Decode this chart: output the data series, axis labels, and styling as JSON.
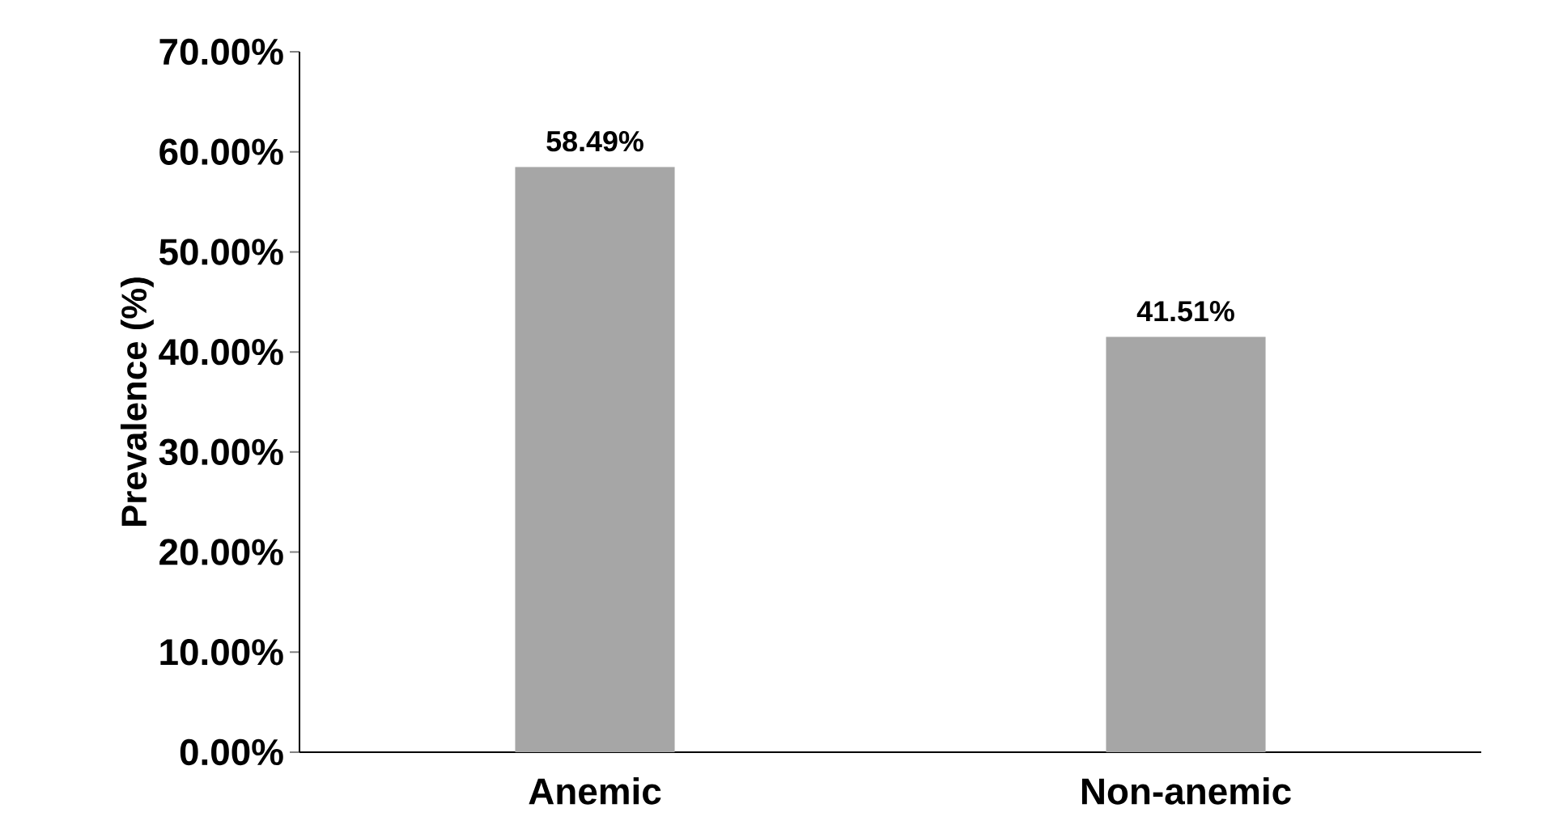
{
  "chart_data": {
    "type": "bar",
    "ylabel": "Prevalence (%)",
    "categories": [
      "Anemic",
      "Non-anemic"
    ],
    "values": [
      58.49,
      41.51
    ],
    "color": "#a6a6a6",
    "value_labels": [
      "58.49%",
      "41.51%"
    ],
    "ylim": [
      0,
      70
    ],
    "yticks": [
      {
        "value": 0,
        "label": "0.00%"
      },
      {
        "value": 10,
        "label": "10.00%"
      },
      {
        "value": 20,
        "label": "20.00%"
      },
      {
        "value": 30,
        "label": "30.00%"
      },
      {
        "value": 40,
        "label": "40.00%"
      },
      {
        "value": 50,
        "label": "50.00%"
      },
      {
        "value": 60,
        "label": "60.00%"
      },
      {
        "value": 70,
        "label": "70.00%"
      }
    ],
    "grid": false
  }
}
